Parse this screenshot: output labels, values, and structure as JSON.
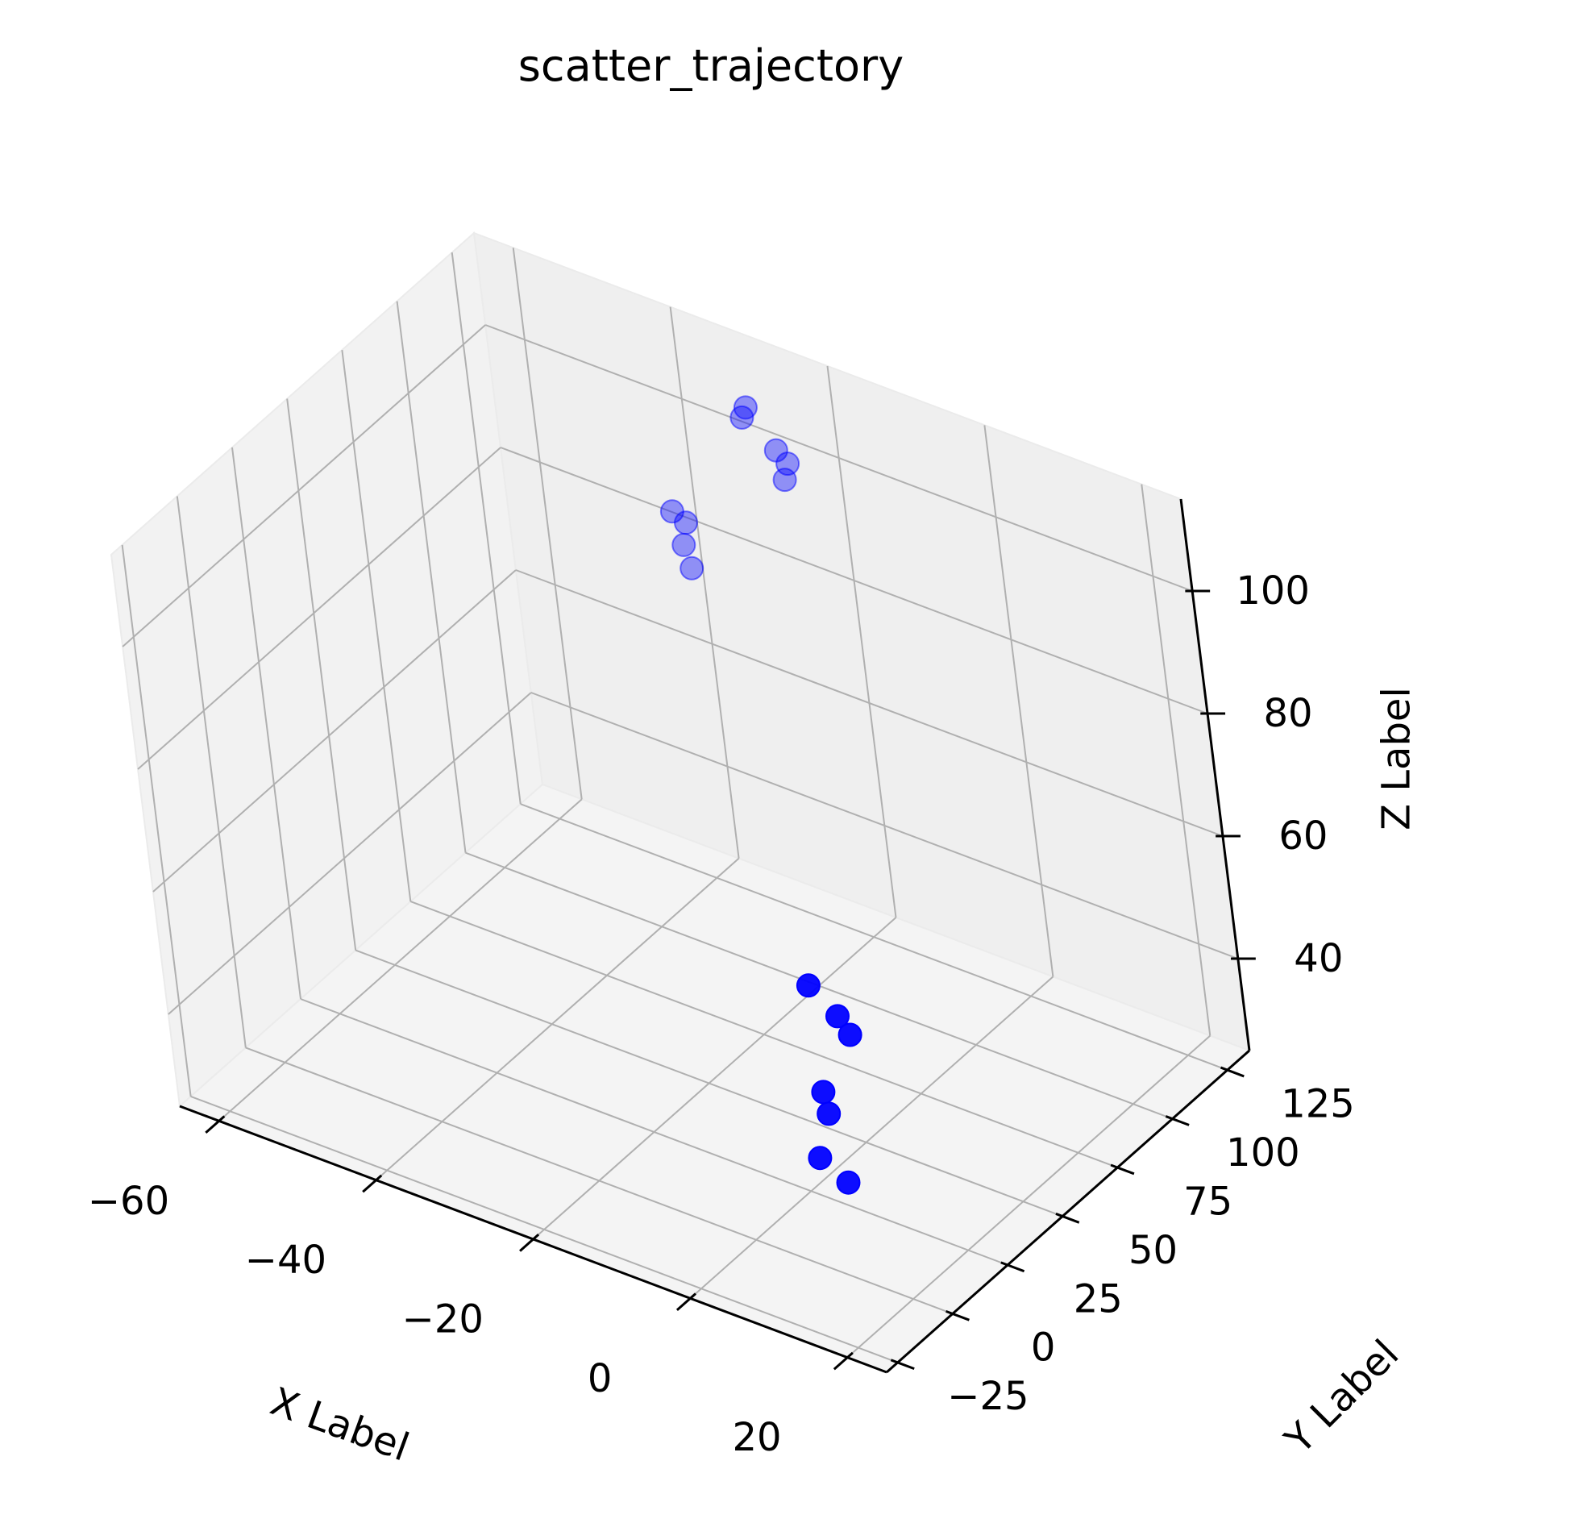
{
  "chart_data": {
    "type": "scatter",
    "projection": "3d",
    "title": "scatter_trajectory",
    "xlabel": "X Label",
    "ylabel": "Y Label",
    "zlabel": "Z Label",
    "xlim": [
      -65,
      25
    ],
    "ylim": [
      -30,
      135
    ],
    "zlim": [
      25,
      115
    ],
    "xticks": [
      -60,
      -40,
      -20,
      0,
      20
    ],
    "yticks": [
      -25,
      0,
      25,
      50,
      75,
      100,
      125
    ],
    "zticks": [
      40,
      60,
      80,
      100
    ],
    "xtick_labels": [
      "−60",
      "−40",
      "−20",
      "0",
      "20"
    ],
    "ytick_labels": [
      "−25",
      "0",
      "25",
      "50",
      "75",
      "100",
      "125"
    ],
    "ztick_labels": [
      "40",
      "60",
      "80",
      "100"
    ],
    "grid": true,
    "marker_color": "#0000ff",
    "series": [
      {
        "values": [
          {
            "x": 10,
            "y": 10,
            "z": 36
          },
          {
            "x": 5,
            "y": 15,
            "z": 36
          },
          {
            "x": 2,
            "y": 30,
            "z": 37
          },
          {
            "x": 0,
            "y": 35,
            "z": 38
          },
          {
            "x": -2,
            "y": 55,
            "z": 40
          },
          {
            "x": -5,
            "y": 60,
            "z": 40
          },
          {
            "x": -10,
            "y": 65,
            "z": 41
          },
          {
            "x": -30,
            "y": 130,
            "z": 105
          },
          {
            "x": -30,
            "y": 128,
            "z": 104
          },
          {
            "x": -25,
            "y": 125,
            "z": 102
          },
          {
            "x": -24,
            "y": 126,
            "z": 100
          },
          {
            "x": -24,
            "y": 124,
            "z": 98
          },
          {
            "x": -35,
            "y": 110,
            "z": 92
          },
          {
            "x": -34,
            "y": 112,
            "z": 90
          },
          {
            "x": -34,
            "y": 110,
            "z": 87
          },
          {
            "x": -33,
            "y": 109,
            "z": 84
          }
        ]
      }
    ]
  }
}
